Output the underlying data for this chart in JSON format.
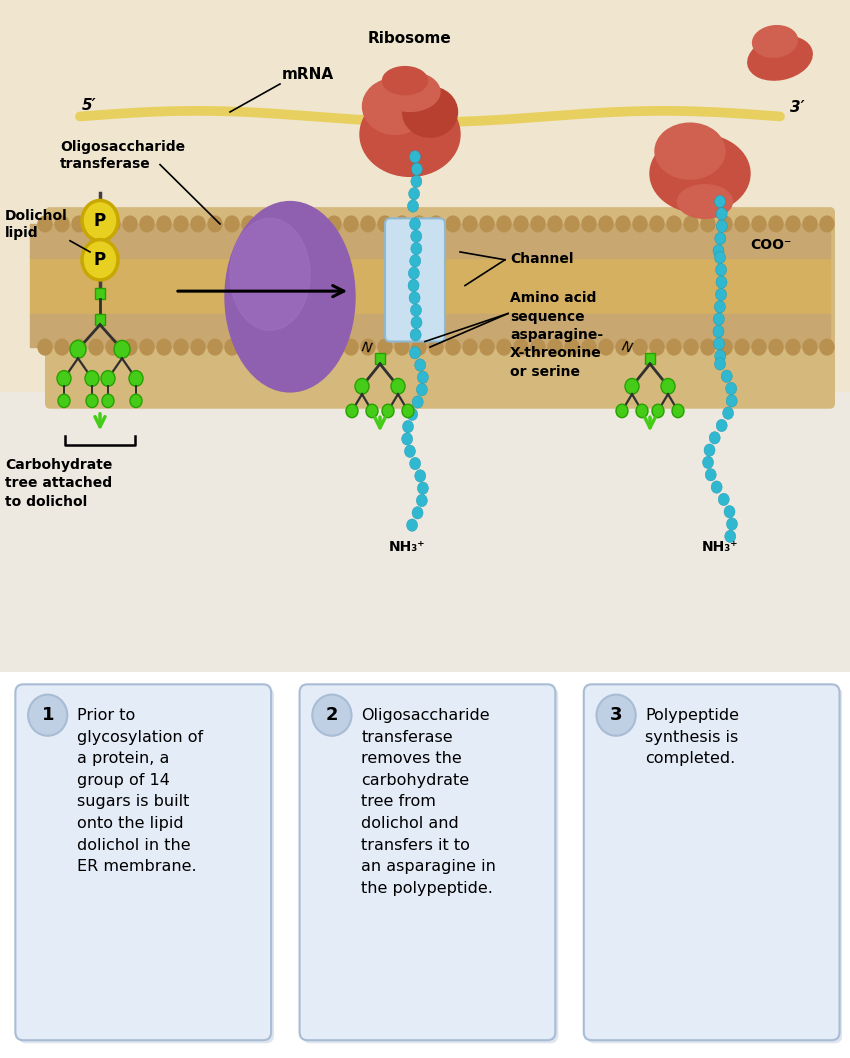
{
  "bg_color": "#f5ede0",
  "bg_color2": "#e8d8b8",
  "lumen_color": "#ede0c8",
  "membrane_tan": "#c8a870",
  "membrane_dark": "#a08040",
  "membrane_light": "#d4b87c",
  "mrna_color": "#e8d060",
  "ribosome_color1": "#c85040",
  "ribosome_color2": "#d06050",
  "ribosome_color3": "#b84030",
  "purple1": "#9060b0",
  "purple2": "#a070c0",
  "cyan_color": "#30b8d0",
  "green_color": "#44cc18",
  "green_dark": "#28a000",
  "yellow_p": "#e8d020",
  "yellow_p_border": "#c8a800",
  "channel_color": "#c8e0f0",
  "channel_border": "#90b8d0",
  "white_bg": "#ffffff",
  "box_bg": "#e4ecf8",
  "box_border": "#a8bcd4",
  "num_circle_bg": "#c0d0e4",
  "box1_text": "Prior to\nglycosylation of\na protein, a\ngroup of 14\nsugars is built\nonto the lipid\ndolichol in the\nER membrane.",
  "box2_text": "Oligosaccharide\ntransferase\nremoves the\ncarbohydrate\ntree from\ndolichol and\ntransfers it to\nan asparagine in\nthe polypeptide.",
  "box3_text": "Polypeptide\nsynthesis is\ncompleted.",
  "label_5prime": "5′",
  "label_3prime": "3′",
  "label_mrna": "mRNA",
  "label_ribosome": "Ribosome",
  "label_dolichol": "Dolichol\nlipid",
  "label_oligo": "Oligosaccharide\ntransferase",
  "label_channel": "Channel",
  "label_amino": "Amino acid\nsequence\nasparagine-\nX-threonine\nor serine",
  "label_nh3a": "NH₃⁺",
  "label_nh3b": "NH₃⁺",
  "label_coo": "COO⁻",
  "label_carb": "Carbohydrate\ntree attached\nto dolichol"
}
